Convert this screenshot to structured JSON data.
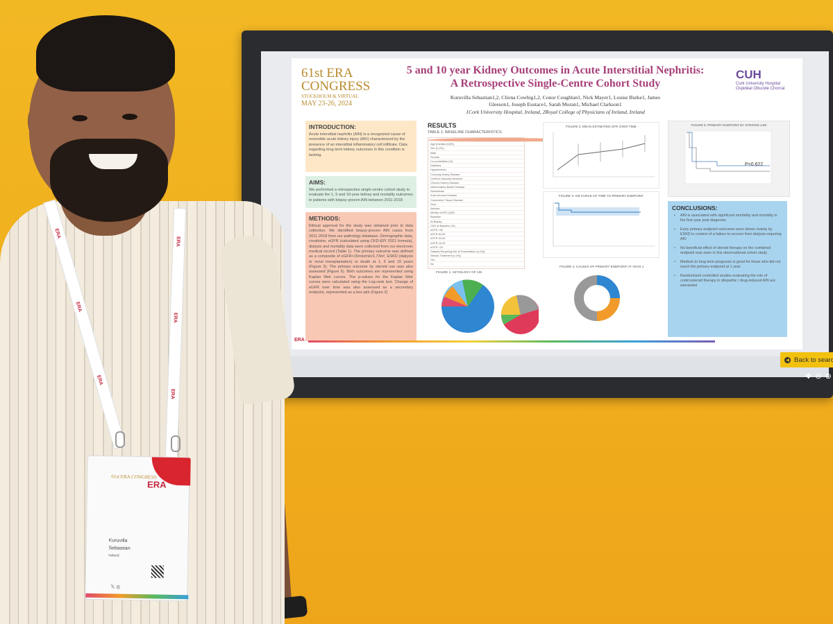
{
  "poster": {
    "congress": {
      "line1": "61st ERA",
      "line2": "CONGRESS",
      "line3": "STOCKHOLM & VIRTUAL",
      "line4": "MAY 23-26, 2024"
    },
    "title": "5 and 10 year Kidney Outcomes in Acute Interstitial Nephritis: A Retrospective Single-Centre Cohort Study",
    "authors": "Kuruvilla Sebastian1,2, Cliona Cowhig1,2, Conor Coughlan1, Nick Mayer1, Louise Burke1, James Gleeson1, Joseph Eustace1, Sarah Moran1, Michael Clarkson1",
    "affiliations": "1Cork University Hospital, Ireland, 2Royal College of Physicians of Ireland, Ireland",
    "hospital_logo": {
      "acronym": "CUH",
      "name": "Cork University Hospital",
      "irish_name": "Ospidéal Ollscoile Chorcaí"
    },
    "intro": {
      "heading": "INTRODUCTION:",
      "text": "Acute interstitial nephritis (AIN) is a recognized cause of reversible acute kidney injury (AKI) characterized by the presence of an interstitial inflammatory cell infiltrate. Data regarding long term kidney outcomes in this condition is lacking."
    },
    "aims": {
      "heading": "AIMS:",
      "text": "We performed a retrospective single-centre cohort study to evaluate the 1, 5 and 10-year kidney and mortality outcomes in patients with biopsy-proven AIN between 2011-2018"
    },
    "methods": {
      "heading": "METHODS:",
      "text": "Ethical approval for the study was obtained prior to data collection. We identified biopsy-proven AIN cases from 2011-2018 from our pathology database. Demographic data, creatinine, eGFR (calculated using CKD-EPI 2021 formula), dialysis and mortality data were collected from our electronic medical record (Table 1). The primary outcome was defined as a composite of eGFR<15mls/min/1.73m², ESKD (dialysis or renal transplantation) or death at 1, 5 and 10 years (Figure 3). The primary outcome by steroid use was also assessed (Figure 5). Both outcomes are represented using Kaplan Meir curves. The p-values for the Kaplan Meir curves were calculated using the Log-rank test. Change of eGFR over time was also assessed as a secondary endpoint, represented as a box plot (Figure 2)"
    },
    "results": {
      "heading": "RESULTS",
      "table_title": "TABLE 1: BASELINE CHARACTERISTICS",
      "table_rows": [
        "Age (median (IQR))",
        "Sex (n (%))",
        "Male",
        "Female",
        "Co-morbidities (%)",
        "Diabetes",
        "Hypertension",
        "Coronary Artery Disease",
        "Cerebro-Vascular Accident",
        "Chronic Kidney Disease",
        "Inflammatory Bowel Disease",
        "Sarcoidosis",
        "Auto-immune Disease",
        "Connective Tissue Disease",
        "Gout",
        "Asthma",
        "Median eGFR (IQR)",
        "Baseline",
        "At Biopsy",
        "CKD at Baseline (%)",
        "eGFR >90",
        "eGFR 60-90",
        "eGFR 30-60",
        "eGFR 15-30",
        "eGFR <15",
        "Dialysis Requiring AKI at Presentation (n (%))",
        "Steroid Treatment (n (%))",
        "Yes",
        "No"
      ],
      "fig1_title": "FIGURE 1: AETIOLOGY OF AIN",
      "fig2_title": "FIGURE 2: MEAN ESTIMATED GFR OVER TIME",
      "fig3_title": "FIGURE 3: KM CURVE OF TIME TO PRIMARY ENDPOINT",
      "fig4_title": "FIGURE 4: CAUSES OF PRIMARY ENDPOINT AT YEAR 1",
      "fig5_title": "FIGURE 5: PRIMARY ENDPOINT BY STEROID USE",
      "fig5_pvalue": "P=0.622"
    },
    "conclusions": {
      "heading": "CONCLUSIONS:",
      "items": [
        "AIN is associated with significant morbidity and mortality in the first-year post diagnosis",
        "Early primary endpoint outcomes were driven mainly by ESKD in context of a failure to recover from dialysis-requiring AKI",
        "No beneficial effect of steroid therapy on the combined endpoint was seen in this observational cohort study",
        "Medium to long term prognosis is good for those who did not reach the primary endpoint at 1 year",
        "Randomized controlled studies evaluating the role of corticosteroid therapy in idiopathic / drug-induced AIN are warranted"
      ]
    },
    "footer_logo": "ERA"
  },
  "viewer": {
    "back_button": "Back to search",
    "tools": [
      "move-icon",
      "zoom-out-icon",
      "zoom-in-icon"
    ]
  },
  "badge": {
    "congress_logo": "61st ERA CONGRESS",
    "org_logo": "ERA",
    "first_name": "Kuruvilla",
    "last_name": "Sebastian",
    "country": "Ireland"
  },
  "lanyard_text": "ERA",
  "colors": {
    "wall": "#f0ae1c",
    "poster_title": "#a63f78",
    "intro_box": "#fde7c7",
    "aims_box": "#dcefe2",
    "methods_box": "#f9c8b4",
    "conclusions_box": "#a9d4ef",
    "back_button": "#f2c10f",
    "era_red": "#c4243c"
  }
}
